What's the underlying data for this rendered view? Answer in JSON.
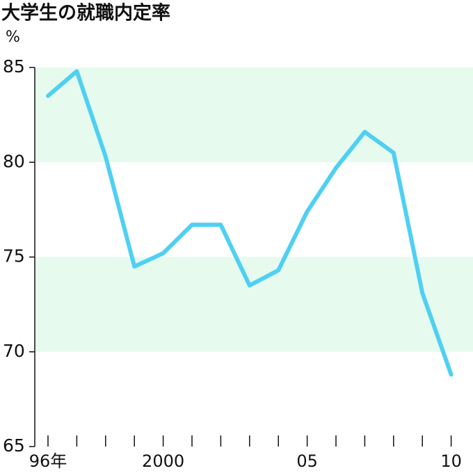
{
  "chart_data": {
    "type": "line",
    "title": "大学生の就職内定率",
    "y_unit": "%",
    "categories": [
      "96年",
      null,
      null,
      null,
      "2000",
      null,
      null,
      null,
      null,
      "05",
      null,
      null,
      null,
      null,
      "10"
    ],
    "series": [
      {
        "name": "大学生の就職内定率",
        "color": "#4fd0f2",
        "values": [
          83.5,
          84.8,
          80.3,
          74.5,
          75.2,
          76.7,
          76.7,
          73.5,
          74.3,
          77.4,
          79.7,
          81.6,
          80.5,
          73.1,
          68.8
        ]
      }
    ],
    "ylim": [
      65,
      85
    ],
    "yticks": [
      65,
      70,
      75,
      80,
      85
    ],
    "bands": true,
    "band_color": "#e6fbee"
  }
}
